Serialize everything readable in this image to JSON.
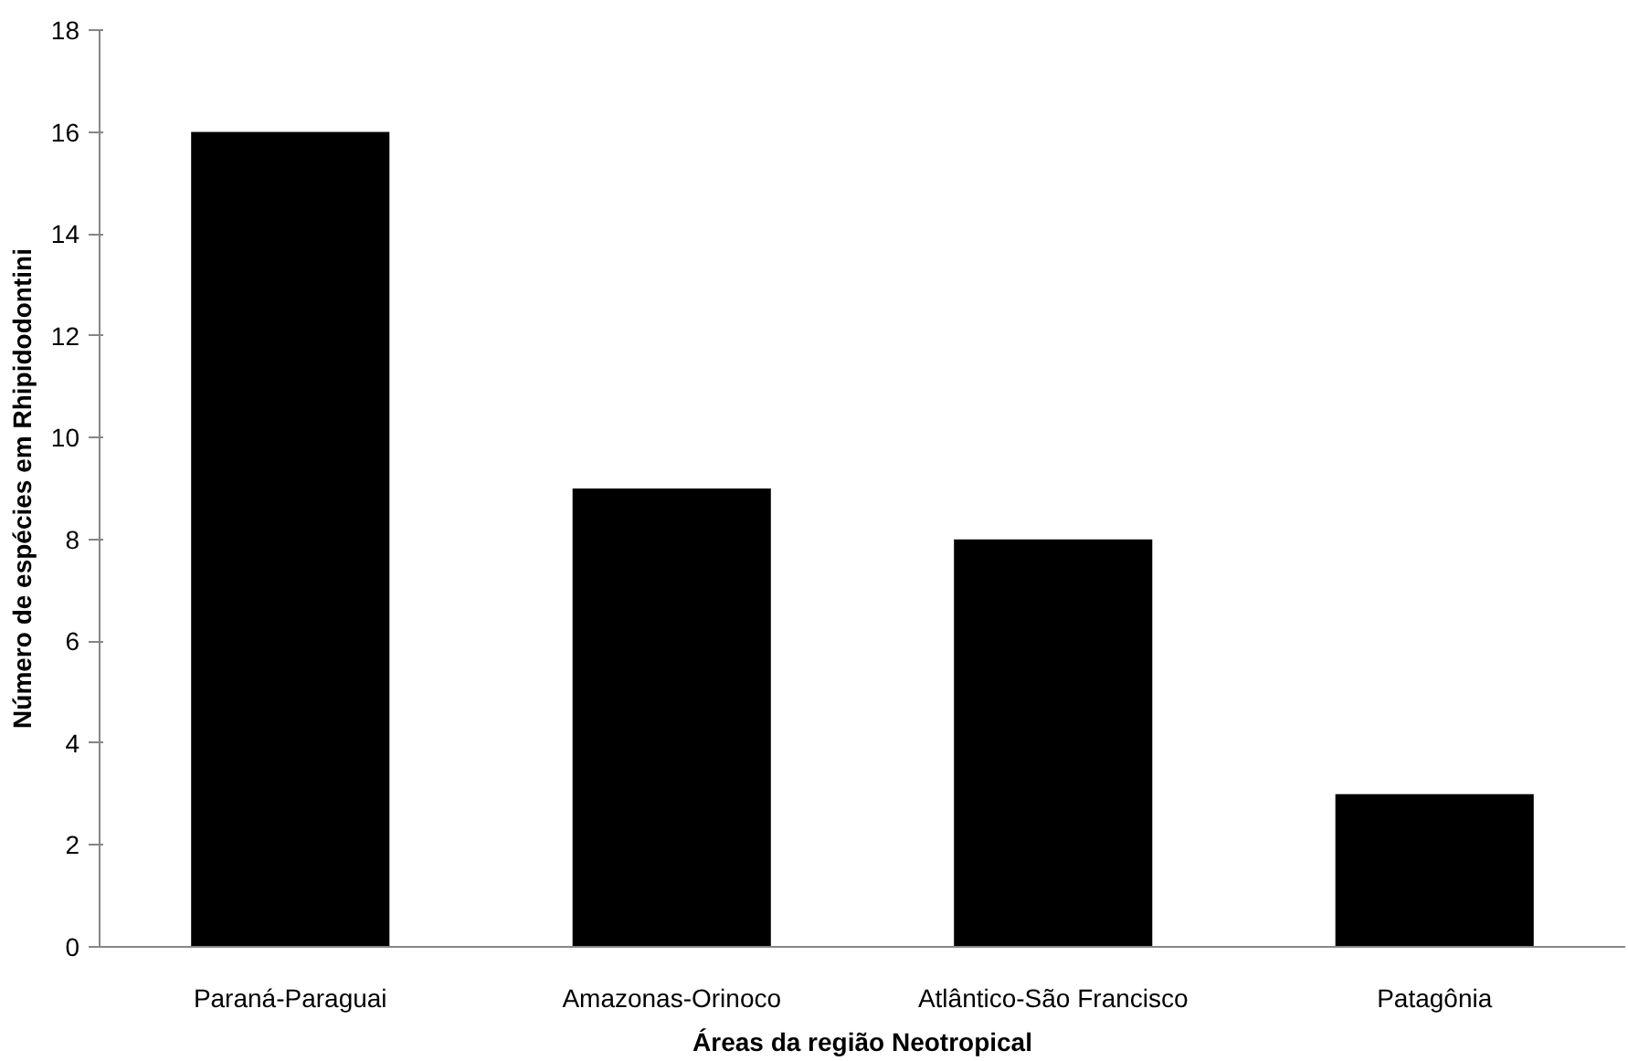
{
  "chart_data": {
    "type": "bar",
    "xlabel": "Áreas da região Neotropical",
    "ylabel": "Número de espécies em Rhipidodontini",
    "categories": [
      "Paraná-Paraguai",
      "Amazonas-Orinoco",
      "Atlântico-São Francisco",
      "Patagônia"
    ],
    "values": [
      16,
      9,
      8,
      3
    ],
    "color": "#000000",
    "ylim": [
      0,
      18
    ],
    "yticks": [
      0,
      2,
      4,
      6,
      8,
      10,
      12,
      14,
      16,
      18
    ],
    "grid": false
  }
}
